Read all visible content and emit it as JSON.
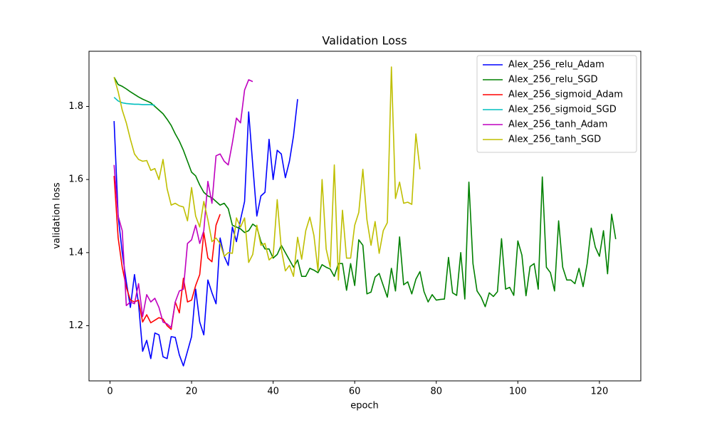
{
  "chart_data": {
    "type": "line",
    "title": "Validation Loss",
    "x_label": "epoch",
    "y_label": "validation loss",
    "xlim": [
      -5.15,
      130.15
    ],
    "ylim": [
      1.049,
      1.951
    ],
    "xticks": [
      0,
      20,
      40,
      60,
      80,
      100,
      120
    ],
    "yticks": [
      1.2,
      1.4,
      1.6,
      1.8
    ],
    "legend": "upper right",
    "grid": false,
    "series": [
      {
        "name": "Alex_256_relu_Adam",
        "color": "#0000ff",
        "x": [
          1,
          2,
          3,
          4,
          5,
          6,
          7,
          8,
          9,
          10,
          11,
          12,
          13,
          14,
          15,
          16,
          17,
          18,
          19,
          20,
          21,
          22,
          23,
          24,
          25,
          26,
          27,
          28,
          29,
          30,
          31,
          32,
          33,
          34,
          35,
          36,
          37,
          38,
          39,
          40,
          41,
          42,
          43,
          44,
          45,
          46
        ],
        "values": [
          1.76,
          1.5,
          1.4,
          1.32,
          1.25,
          1.34,
          1.26,
          1.13,
          1.16,
          1.11,
          1.18,
          1.175,
          1.115,
          1.11,
          1.17,
          1.168,
          1.12,
          1.09,
          1.13,
          1.17,
          1.3,
          1.21,
          1.175,
          1.325,
          1.29,
          1.26,
          1.44,
          1.39,
          1.365,
          1.47,
          1.43,
          1.49,
          1.54,
          1.785,
          1.64,
          1.5,
          1.555,
          1.565,
          1.71,
          1.6,
          1.68,
          1.67,
          1.605,
          1.65,
          1.72,
          1.82
        ]
      },
      {
        "name": "Alex_256_relu_SGD",
        "color": "#008000",
        "x": [
          1,
          2,
          3,
          4,
          5,
          6,
          7,
          8,
          9,
          10,
          11,
          12,
          13,
          14,
          15,
          16,
          17,
          18,
          19,
          20,
          21,
          22,
          23,
          24,
          25,
          26,
          27,
          28,
          29,
          30,
          31,
          32,
          33,
          34,
          35,
          36,
          37,
          38,
          39,
          40,
          41,
          42,
          43,
          44,
          45,
          46,
          47,
          48,
          49,
          50,
          51,
          52,
          53,
          54,
          55,
          56,
          57,
          58,
          59,
          60,
          61,
          62,
          63,
          64,
          65,
          66,
          67,
          68,
          69,
          70,
          71,
          72,
          73,
          74,
          75,
          76,
          77,
          78,
          79,
          80,
          81,
          82,
          83,
          84,
          85,
          86,
          87,
          88,
          89,
          90,
          91,
          92,
          93,
          94,
          95,
          96,
          97,
          98,
          99,
          100,
          101,
          102,
          103,
          104,
          105,
          106,
          107,
          108,
          109,
          110,
          111,
          112,
          113,
          114,
          115,
          116,
          117,
          118,
          119,
          120,
          121,
          122,
          123,
          124
        ],
        "values": [
          1.88,
          1.86,
          1.855,
          1.848,
          1.84,
          1.833,
          1.826,
          1.82,
          1.815,
          1.81,
          1.8,
          1.79,
          1.78,
          1.765,
          1.748,
          1.725,
          1.705,
          1.68,
          1.65,
          1.62,
          1.61,
          1.585,
          1.565,
          1.555,
          1.55,
          1.54,
          1.53,
          1.535,
          1.52,
          1.475,
          1.47,
          1.465,
          1.455,
          1.46,
          1.478,
          1.47,
          1.43,
          1.41,
          1.41,
          1.385,
          1.395,
          1.42,
          1.4,
          1.38,
          1.36,
          1.38,
          1.335,
          1.335,
          1.357,
          1.352,
          1.345,
          1.367,
          1.36,
          1.355,
          1.335,
          1.37,
          1.37,
          1.297,
          1.37,
          1.31,
          1.435,
          1.42,
          1.287,
          1.292,
          1.333,
          1.343,
          1.31,
          1.278,
          1.357,
          1.295,
          1.443,
          1.312,
          1.32,
          1.287,
          1.327,
          1.348,
          1.293,
          1.265,
          1.285,
          1.27,
          1.272,
          1.273,
          1.387,
          1.29,
          1.283,
          1.4,
          1.273,
          1.593,
          1.37,
          1.295,
          1.278,
          1.252,
          1.29,
          1.28,
          1.293,
          1.438,
          1.3,
          1.305,
          1.283,
          1.432,
          1.393,
          1.282,
          1.362,
          1.37,
          1.3,
          1.607,
          1.36,
          1.345,
          1.295,
          1.487,
          1.36,
          1.325,
          1.325,
          1.315,
          1.357,
          1.307,
          1.37,
          1.467,
          1.415,
          1.39,
          1.46,
          1.342,
          1.505,
          1.437
        ]
      },
      {
        "name": "Alex_256_sigmoid_Adam",
        "color": "#ff0000",
        "x": [
          1,
          2,
          3,
          4,
          5,
          6,
          7,
          8,
          9,
          10,
          11,
          12,
          13,
          14,
          15,
          16,
          17,
          18,
          19,
          20,
          21,
          22,
          23,
          24,
          25,
          26,
          27
        ],
        "values": [
          1.61,
          1.44,
          1.36,
          1.305,
          1.27,
          1.265,
          1.27,
          1.21,
          1.23,
          1.208,
          1.215,
          1.222,
          1.218,
          1.2,
          1.19,
          1.265,
          1.235,
          1.33,
          1.265,
          1.27,
          1.31,
          1.34,
          1.455,
          1.385,
          1.375,
          1.475,
          1.505
        ]
      },
      {
        "name": "Alex_256_sigmoid_SGD",
        "color": "#00bfbf",
        "x": [
          1,
          2,
          3,
          4,
          5,
          6,
          7,
          8,
          9,
          10,
          11
        ],
        "values": [
          1.825,
          1.815,
          1.81,
          1.808,
          1.807,
          1.806,
          1.806,
          1.805,
          1.805,
          1.805,
          1.803
        ]
      },
      {
        "name": "Alex_256_tanh_Adam",
        "color": "#bf00bf",
        "x": [
          1,
          2,
          3,
          4,
          5,
          6,
          7,
          8,
          9,
          10,
          11,
          12,
          13,
          14,
          15,
          16,
          17,
          18,
          19,
          20,
          21,
          22,
          23,
          24,
          25,
          26,
          27,
          28,
          29,
          30,
          31,
          32,
          33,
          34,
          35
        ],
        "values": [
          1.64,
          1.5,
          1.46,
          1.255,
          1.265,
          1.26,
          1.315,
          1.225,
          1.285,
          1.265,
          1.275,
          1.25,
          1.21,
          1.205,
          1.195,
          1.265,
          1.295,
          1.3,
          1.425,
          1.435,
          1.475,
          1.425,
          1.46,
          1.595,
          1.535,
          1.665,
          1.67,
          1.65,
          1.64,
          1.7,
          1.768,
          1.755,
          1.845,
          1.873,
          1.868
        ]
      },
      {
        "name": "Alex_256_tanh_SGD",
        "color": "#bfbf00",
        "x": [
          1,
          2,
          3,
          4,
          5,
          6,
          7,
          8,
          9,
          10,
          11,
          12,
          13,
          14,
          15,
          16,
          17,
          18,
          19,
          20,
          21,
          22,
          23,
          24,
          25,
          26,
          27,
          28,
          29,
          30,
          31,
          32,
          33,
          34,
          35,
          36,
          37,
          38,
          39,
          40,
          41,
          42,
          43,
          44,
          45,
          46,
          47,
          48,
          49,
          50,
          51,
          52,
          53,
          54,
          55,
          56,
          57,
          58,
          59,
          60,
          61,
          62,
          63,
          64,
          65,
          66,
          67,
          68,
          69,
          70,
          71,
          72,
          73,
          74,
          75,
          76
        ],
        "values": [
          1.88,
          1.84,
          1.79,
          1.755,
          1.71,
          1.67,
          1.655,
          1.65,
          1.652,
          1.625,
          1.63,
          1.6,
          1.655,
          1.575,
          1.53,
          1.535,
          1.528,
          1.525,
          1.487,
          1.578,
          1.5,
          1.47,
          1.54,
          1.49,
          1.43,
          1.44,
          1.425,
          1.39,
          1.4,
          1.398,
          1.495,
          1.47,
          1.495,
          1.373,
          1.395,
          1.475,
          1.42,
          1.425,
          1.38,
          1.39,
          1.545,
          1.41,
          1.35,
          1.365,
          1.335,
          1.442,
          1.382,
          1.46,
          1.497,
          1.447,
          1.35,
          1.6,
          1.41,
          1.36,
          1.64,
          1.325,
          1.516,
          1.385,
          1.385,
          1.475,
          1.51,
          1.628,
          1.49,
          1.42,
          1.485,
          1.398,
          1.46,
          1.482,
          1.908,
          1.548,
          1.593,
          1.535,
          1.538,
          1.532,
          1.725,
          1.628
        ]
      }
    ]
  }
}
